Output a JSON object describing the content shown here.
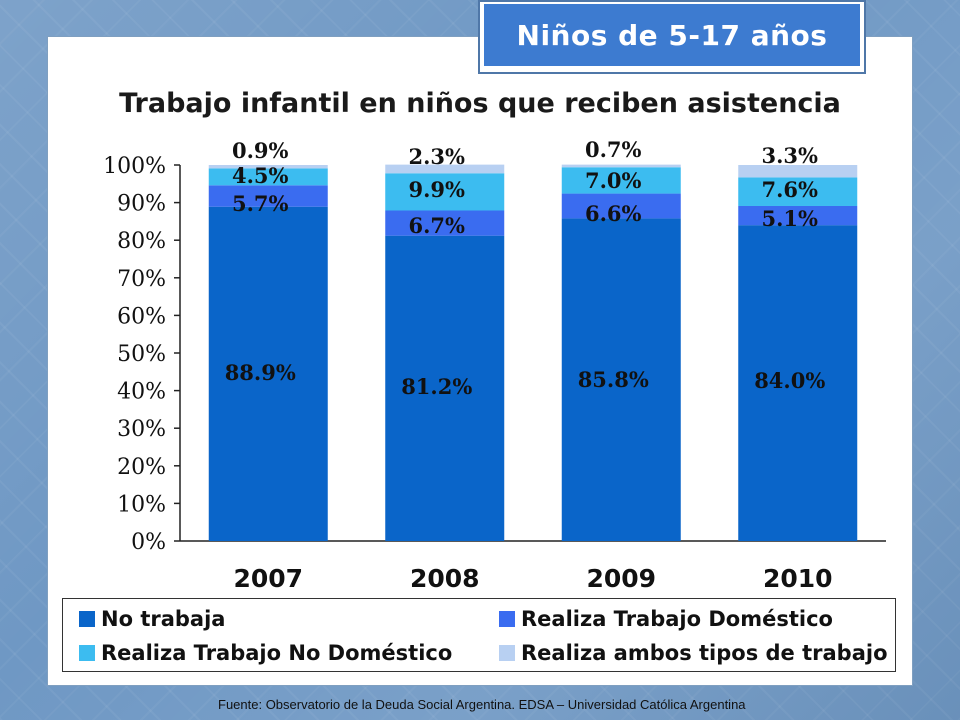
{
  "badge": {
    "text": "Niños de 5-17 años"
  },
  "source": "Fuente: Observatorio de  la Deuda Social Argentina. EDSA – Universidad Católica Argentina",
  "colors": {
    "no_trabaja": "#0a65c9",
    "domestico": "#3a6cf0",
    "no_domestico": "#3cbcf0",
    "ambos": "#b8d0f2",
    "badge": "#3d7bd0"
  },
  "chart_data": {
    "type": "bar",
    "stacked": true,
    "title": "Trabajo infantil en niños que reciben asistencia",
    "categories": [
      "2007",
      "2008",
      "2009",
      "2010"
    ],
    "y_ticks": [
      "0%",
      "10%",
      "20%",
      "30%",
      "40%",
      "50%",
      "60%",
      "70%",
      "80%",
      "90%",
      "100%"
    ],
    "ylim": [
      0,
      100
    ],
    "grid": false,
    "legend_position": "bottom",
    "series": [
      {
        "name": "No trabaja",
        "values": [
          88.9,
          81.2,
          85.8,
          84.0
        ],
        "labels": [
          "88.9%",
          "81.2%",
          "85.8%",
          "84.0%"
        ]
      },
      {
        "name": "Realiza Trabajo Doméstico",
        "values": [
          5.7,
          6.7,
          6.6,
          5.1
        ],
        "labels": [
          "5.7%",
          "6.7%",
          "6.6%",
          "5.1%"
        ]
      },
      {
        "name": "Realiza Trabajo No Doméstico",
        "values": [
          4.5,
          9.9,
          7.0,
          7.6
        ],
        "labels": [
          "4.5%",
          "9.9%",
          "7.0%",
          "7.6%"
        ]
      },
      {
        "name": "Realiza ambos tipos de trabajo",
        "values": [
          0.9,
          2.3,
          0.7,
          3.3
        ],
        "labels": [
          "0.9%",
          "2.3%",
          "0.7%",
          "3.3%"
        ]
      }
    ]
  }
}
